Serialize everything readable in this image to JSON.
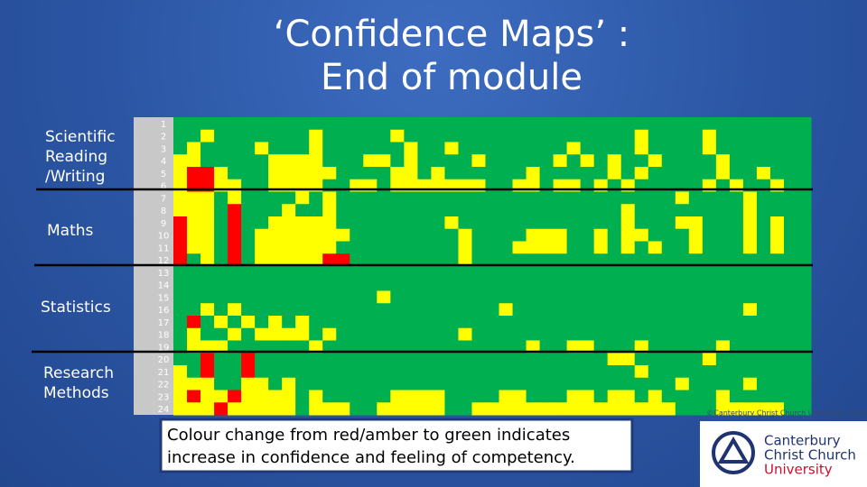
{
  "title": [
    "‘Confidence Maps’ :",
    "End of module"
  ],
  "sections": [
    {
      "lines": [
        "Scientific",
        "Reading",
        "/Writing"
      ]
    },
    {
      "lines": [
        "Maths"
      ]
    },
    {
      "lines": [
        "Statistics"
      ]
    },
    {
      "lines": [
        "Research",
        "Methods"
      ]
    }
  ],
  "heatmap": {
    "row_labels": [
      1,
      2,
      3,
      4,
      5,
      6,
      7,
      8,
      9,
      10,
      11,
      12,
      13,
      14,
      15,
      16,
      17,
      18,
      19,
      20,
      21,
      22,
      23,
      24
    ],
    "colors": [
      "#ff0000",
      "#ffff00",
      "#00b050"
    ],
    "rows": [
      [
        2,
        2,
        2,
        2,
        2,
        2,
        2,
        2,
        2,
        2,
        2,
        2,
        2,
        2,
        2,
        2,
        2,
        2,
        2,
        2,
        2,
        2,
        2,
        2,
        2,
        2,
        2,
        2,
        2,
        2,
        2,
        2,
        2,
        2,
        2,
        2,
        2,
        2,
        2,
        2,
        2,
        2,
        2,
        2,
        2,
        2,
        2
      ],
      [
        2,
        2,
        1,
        2,
        2,
        2,
        2,
        2,
        2,
        2,
        1,
        2,
        2,
        2,
        2,
        2,
        1,
        2,
        2,
        2,
        2,
        2,
        2,
        2,
        2,
        2,
        2,
        2,
        2,
        2,
        2,
        2,
        2,
        2,
        1,
        2,
        2,
        2,
        2,
        1,
        2,
        2,
        2,
        2,
        2,
        2,
        2
      ],
      [
        2,
        1,
        2,
        2,
        2,
        2,
        1,
        2,
        2,
        2,
        1,
        2,
        2,
        2,
        2,
        2,
        2,
        1,
        2,
        2,
        1,
        2,
        2,
        2,
        2,
        2,
        2,
        2,
        2,
        1,
        2,
        2,
        2,
        2,
        1,
        2,
        2,
        2,
        2,
        1,
        2,
        2,
        2,
        2,
        2,
        2,
        2
      ],
      [
        1,
        1,
        2,
        2,
        2,
        2,
        2,
        1,
        1,
        1,
        1,
        2,
        2,
        2,
        1,
        1,
        2,
        1,
        2,
        2,
        2,
        2,
        1,
        2,
        2,
        2,
        2,
        2,
        1,
        2,
        1,
        2,
        1,
        2,
        2,
        1,
        2,
        2,
        2,
        2,
        1,
        2,
        2,
        2,
        2,
        2,
        2
      ],
      [
        1,
        0,
        0,
        1,
        2,
        2,
        2,
        1,
        1,
        1,
        1,
        1,
        2,
        2,
        2,
        2,
        1,
        1,
        2,
        1,
        2,
        2,
        2,
        2,
        2,
        2,
        1,
        2,
        2,
        2,
        2,
        2,
        1,
        2,
        1,
        2,
        2,
        2,
        2,
        2,
        1,
        2,
        2,
        1,
        2,
        2,
        2
      ],
      [
        1,
        0,
        0,
        1,
        1,
        2,
        2,
        1,
        1,
        1,
        1,
        2,
        2,
        1,
        1,
        2,
        1,
        1,
        1,
        1,
        1,
        1,
        1,
        2,
        2,
        1,
        1,
        2,
        1,
        1,
        2,
        1,
        2,
        1,
        2,
        2,
        2,
        2,
        2,
        1,
        2,
        1,
        2,
        2,
        1,
        2,
        2
      ],
      [
        1,
        1,
        1,
        2,
        1,
        2,
        2,
        2,
        2,
        1,
        2,
        1,
        2,
        2,
        2,
        2,
        2,
        2,
        2,
        2,
        2,
        2,
        2,
        2,
        2,
        2,
        2,
        2,
        2,
        2,
        2,
        2,
        2,
        2,
        2,
        2,
        2,
        1,
        2,
        2,
        2,
        2,
        1,
        2,
        2,
        2,
        2
      ],
      [
        1,
        1,
        1,
        2,
        0,
        2,
        2,
        2,
        1,
        2,
        2,
        1,
        2,
        2,
        2,
        2,
        2,
        2,
        2,
        2,
        2,
        2,
        2,
        2,
        2,
        2,
        2,
        2,
        2,
        2,
        2,
        2,
        2,
        1,
        2,
        2,
        2,
        2,
        2,
        2,
        2,
        2,
        1,
        2,
        2,
        2,
        2
      ],
      [
        0,
        1,
        1,
        2,
        0,
        2,
        2,
        1,
        1,
        1,
        1,
        1,
        2,
        2,
        2,
        2,
        2,
        2,
        2,
        2,
        1,
        2,
        2,
        2,
        2,
        2,
        2,
        2,
        2,
        2,
        2,
        2,
        2,
        1,
        2,
        2,
        2,
        1,
        1,
        2,
        2,
        2,
        1,
        2,
        1,
        2,
        2
      ],
      [
        0,
        1,
        1,
        2,
        0,
        2,
        1,
        1,
        1,
        1,
        1,
        1,
        1,
        2,
        2,
        2,
        2,
        2,
        2,
        2,
        2,
        1,
        2,
        2,
        2,
        2,
        1,
        1,
        1,
        2,
        2,
        1,
        2,
        1,
        1,
        2,
        2,
        2,
        1,
        2,
        2,
        2,
        1,
        2,
        1,
        2,
        2
      ],
      [
        0,
        1,
        1,
        2,
        0,
        2,
        1,
        1,
        1,
        1,
        1,
        1,
        2,
        2,
        2,
        2,
        2,
        2,
        2,
        2,
        2,
        1,
        2,
        2,
        2,
        1,
        1,
        1,
        1,
        2,
        2,
        1,
        2,
        1,
        2,
        1,
        2,
        2,
        1,
        2,
        2,
        2,
        1,
        2,
        1,
        2,
        2
      ],
      [
        0,
        2,
        1,
        2,
        0,
        2,
        1,
        1,
        1,
        1,
        1,
        0,
        0,
        2,
        2,
        2,
        2,
        2,
        2,
        2,
        2,
        1,
        2,
        2,
        2,
        2,
        2,
        2,
        2,
        2,
        2,
        2,
        2,
        2,
        2,
        2,
        2,
        2,
        2,
        2,
        2,
        2,
        2,
        2,
        2,
        2,
        2
      ],
      [
        2,
        2,
        2,
        2,
        2,
        2,
        2,
        2,
        2,
        2,
        2,
        2,
        2,
        2,
        2,
        2,
        2,
        2,
        2,
        2,
        2,
        2,
        2,
        2,
        2,
        2,
        2,
        2,
        2,
        2,
        2,
        2,
        2,
        2,
        2,
        2,
        2,
        2,
        2,
        2,
        2,
        2,
        2,
        2,
        2,
        2,
        2
      ],
      [
        2,
        2,
        2,
        2,
        2,
        2,
        2,
        2,
        2,
        2,
        2,
        2,
        2,
        2,
        2,
        2,
        2,
        2,
        2,
        2,
        2,
        2,
        2,
        2,
        2,
        2,
        2,
        2,
        2,
        2,
        2,
        2,
        2,
        2,
        2,
        2,
        2,
        2,
        2,
        2,
        2,
        2,
        2,
        2,
        2,
        2,
        2
      ],
      [
        2,
        2,
        2,
        2,
        2,
        2,
        2,
        2,
        2,
        2,
        2,
        2,
        2,
        2,
        2,
        1,
        2,
        2,
        2,
        2,
        2,
        2,
        2,
        2,
        2,
        2,
        2,
        2,
        2,
        2,
        2,
        2,
        2,
        2,
        2,
        2,
        2,
        2,
        2,
        2,
        2,
        2,
        2,
        2,
        2,
        2,
        2
      ],
      [
        2,
        2,
        1,
        2,
        1,
        2,
        2,
        2,
        2,
        2,
        2,
        2,
        2,
        2,
        2,
        2,
        2,
        2,
        2,
        2,
        2,
        2,
        2,
        2,
        1,
        2,
        2,
        2,
        2,
        2,
        2,
        2,
        2,
        2,
        2,
        2,
        2,
        2,
        2,
        2,
        2,
        2,
        1,
        2,
        2,
        2,
        2
      ],
      [
        2,
        0,
        2,
        1,
        2,
        1,
        2,
        1,
        2,
        1,
        2,
        2,
        2,
        2,
        2,
        2,
        2,
        2,
        2,
        2,
        2,
        2,
        2,
        2,
        2,
        2,
        2,
        2,
        2,
        2,
        2,
        2,
        2,
        2,
        2,
        2,
        2,
        2,
        2,
        2,
        2,
        2,
        2,
        2,
        2,
        2,
        2
      ],
      [
        2,
        1,
        2,
        2,
        1,
        2,
        1,
        1,
        1,
        1,
        2,
        1,
        2,
        2,
        2,
        2,
        2,
        2,
        2,
        2,
        2,
        1,
        2,
        2,
        2,
        2,
        2,
        2,
        2,
        2,
        2,
        2,
        2,
        2,
        2,
        2,
        2,
        2,
        2,
        2,
        2,
        2,
        2,
        2,
        2,
        2,
        2
      ],
      [
        2,
        1,
        1,
        1,
        2,
        2,
        2,
        2,
        2,
        2,
        1,
        2,
        2,
        2,
        2,
        2,
        2,
        2,
        2,
        2,
        2,
        2,
        2,
        2,
        2,
        2,
        1,
        2,
        2,
        1,
        1,
        2,
        2,
        2,
        1,
        2,
        2,
        2,
        2,
        2,
        1,
        2,
        2,
        2,
        2,
        2,
        2
      ],
      [
        2,
        2,
        0,
        2,
        2,
        0,
        2,
        2,
        2,
        2,
        2,
        2,
        2,
        2,
        2,
        2,
        2,
        2,
        2,
        2,
        2,
        2,
        2,
        2,
        2,
        2,
        2,
        2,
        2,
        2,
        2,
        2,
        1,
        1,
        2,
        2,
        2,
        2,
        2,
        1,
        2,
        2,
        2,
        2,
        2,
        2,
        2
      ],
      [
        1,
        2,
        0,
        2,
        2,
        0,
        2,
        2,
        2,
        2,
        2,
        2,
        2,
        2,
        2,
        2,
        2,
        2,
        2,
        2,
        2,
        2,
        2,
        2,
        2,
        2,
        2,
        2,
        2,
        2,
        2,
        2,
        2,
        2,
        1,
        2,
        2,
        2,
        2,
        2,
        2,
        2,
        2,
        2,
        2,
        2,
        2
      ],
      [
        1,
        1,
        1,
        2,
        2,
        1,
        1,
        2,
        1,
        2,
        2,
        2,
        2,
        2,
        2,
        2,
        2,
        2,
        2,
        2,
        2,
        2,
        2,
        2,
        2,
        2,
        2,
        2,
        2,
        2,
        2,
        2,
        2,
        2,
        2,
        2,
        2,
        1,
        2,
        2,
        2,
        2,
        1,
        2,
        2,
        2,
        2
      ],
      [
        1,
        0,
        1,
        1,
        0,
        1,
        1,
        1,
        1,
        2,
        1,
        2,
        2,
        2,
        2,
        2,
        1,
        1,
        1,
        1,
        2,
        2,
        2,
        2,
        1,
        1,
        2,
        2,
        2,
        1,
        1,
        2,
        1,
        1,
        2,
        1,
        2,
        2,
        2,
        2,
        1,
        2,
        2,
        2,
        2,
        2,
        2
      ],
      [
        1,
        1,
        1,
        0,
        1,
        1,
        1,
        1,
        1,
        2,
        1,
        1,
        1,
        2,
        2,
        1,
        1,
        1,
        1,
        1,
        2,
        2,
        1,
        1,
        1,
        1,
        1,
        1,
        1,
        1,
        1,
        1,
        1,
        1,
        1,
        1,
        1,
        2,
        2,
        2,
        1,
        1,
        1,
        1,
        1,
        2,
        2
      ]
    ]
  },
  "caption": [
    "Colour change from red/amber to green indicates",
    "increase in confidence and feeling of competency."
  ],
  "copyright": "©Canterbury Christ Church University 2018",
  "logo": [
    "Canterbury",
    "Christ Church",
    "University"
  ]
}
